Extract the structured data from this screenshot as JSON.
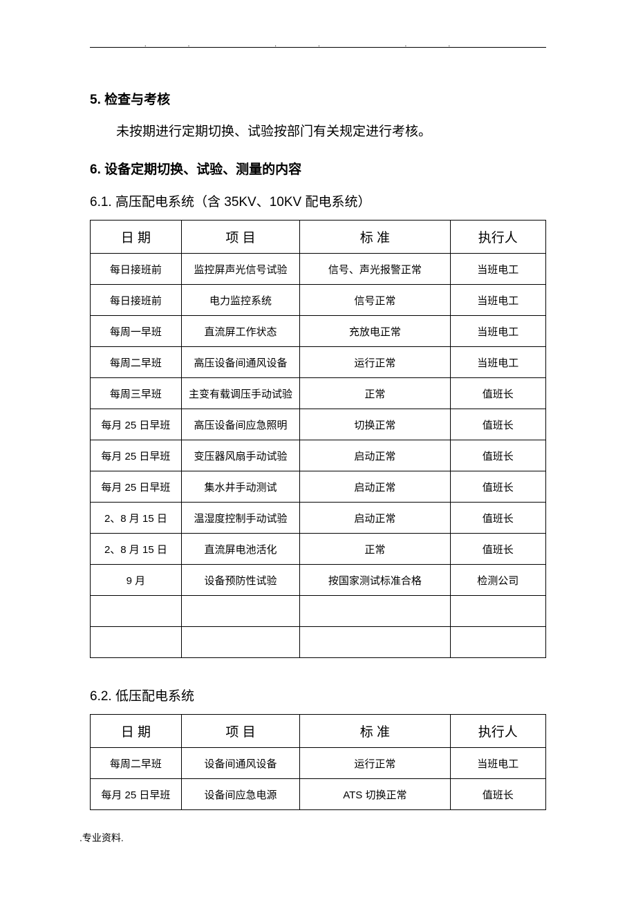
{
  "header_dots": "..           ..            ..",
  "section5": {
    "heading": "5.  检查与考核",
    "body": "未按期进行定期切换、试验按部门有关规定进行考核。"
  },
  "section6": {
    "heading": "6.  设备定期切换、试验、测量的内容"
  },
  "section6_1": {
    "heading": "6.1.  高压配电系统（含 35KV、10KV 配电系统）",
    "columns": {
      "date": "日   期",
      "item": "项    目",
      "standard": "标    准",
      "executor": "执行人"
    },
    "rows": [
      {
        "date": "每日接班前",
        "item": "监控屏声光信号试验",
        "standard": "信号、声光报警正常",
        "executor": "当班电工"
      },
      {
        "date": "每日接班前",
        "item": "电力监控系统",
        "standard": "信号正常",
        "executor": "当班电工"
      },
      {
        "date": "每周一早班",
        "item": "直流屏工作状态",
        "standard": "充放电正常",
        "executor": "当班电工"
      },
      {
        "date": "每周二早班",
        "item": "高压设备间通风设备",
        "standard": "运行正常",
        "executor": "当班电工"
      },
      {
        "date": "每周三早班",
        "item": "主变有载调压手动试验",
        "standard": "正常",
        "executor": "值班长"
      },
      {
        "date": "每月 25 日早班",
        "item": "高压设备间应急照明",
        "standard": "切换正常",
        "executor": "值班长"
      },
      {
        "date": "每月 25 日早班",
        "item": "变压器风扇手动试验",
        "standard": "启动正常",
        "executor": "值班长"
      },
      {
        "date": "每月 25 日早班",
        "item": "集水井手动测试",
        "standard": "启动正常",
        "executor": "值班长"
      },
      {
        "date": "2、8 月 15 日",
        "item": "温湿度控制手动试验",
        "standard": "启动正常",
        "executor": "值班长"
      },
      {
        "date": "2、8 月 15 日",
        "item": "直流屏电池活化",
        "standard": "正常",
        "executor": "值班长"
      },
      {
        "date": "9 月",
        "item": "设备预防性试验",
        "standard": "按国家测试标准合格",
        "executor": "检测公司"
      },
      {
        "date": "",
        "item": "",
        "standard": "",
        "executor": ""
      },
      {
        "date": "",
        "item": "",
        "standard": "",
        "executor": ""
      }
    ]
  },
  "section6_2": {
    "heading": "6.2.  低压配电系统",
    "columns": {
      "date": "日   期",
      "item": "项    目",
      "standard": "标    准",
      "executor": "执行人"
    },
    "rows": [
      {
        "date": "每周二早班",
        "item": "设备间通风设备",
        "standard": "运行正常",
        "executor": "当班电工"
      },
      {
        "date": "每月 25 日早班",
        "item": "设备间应急电源",
        "standard": "ATS 切换正常",
        "executor": "值班长"
      }
    ]
  },
  "footer": ".专业资料."
}
